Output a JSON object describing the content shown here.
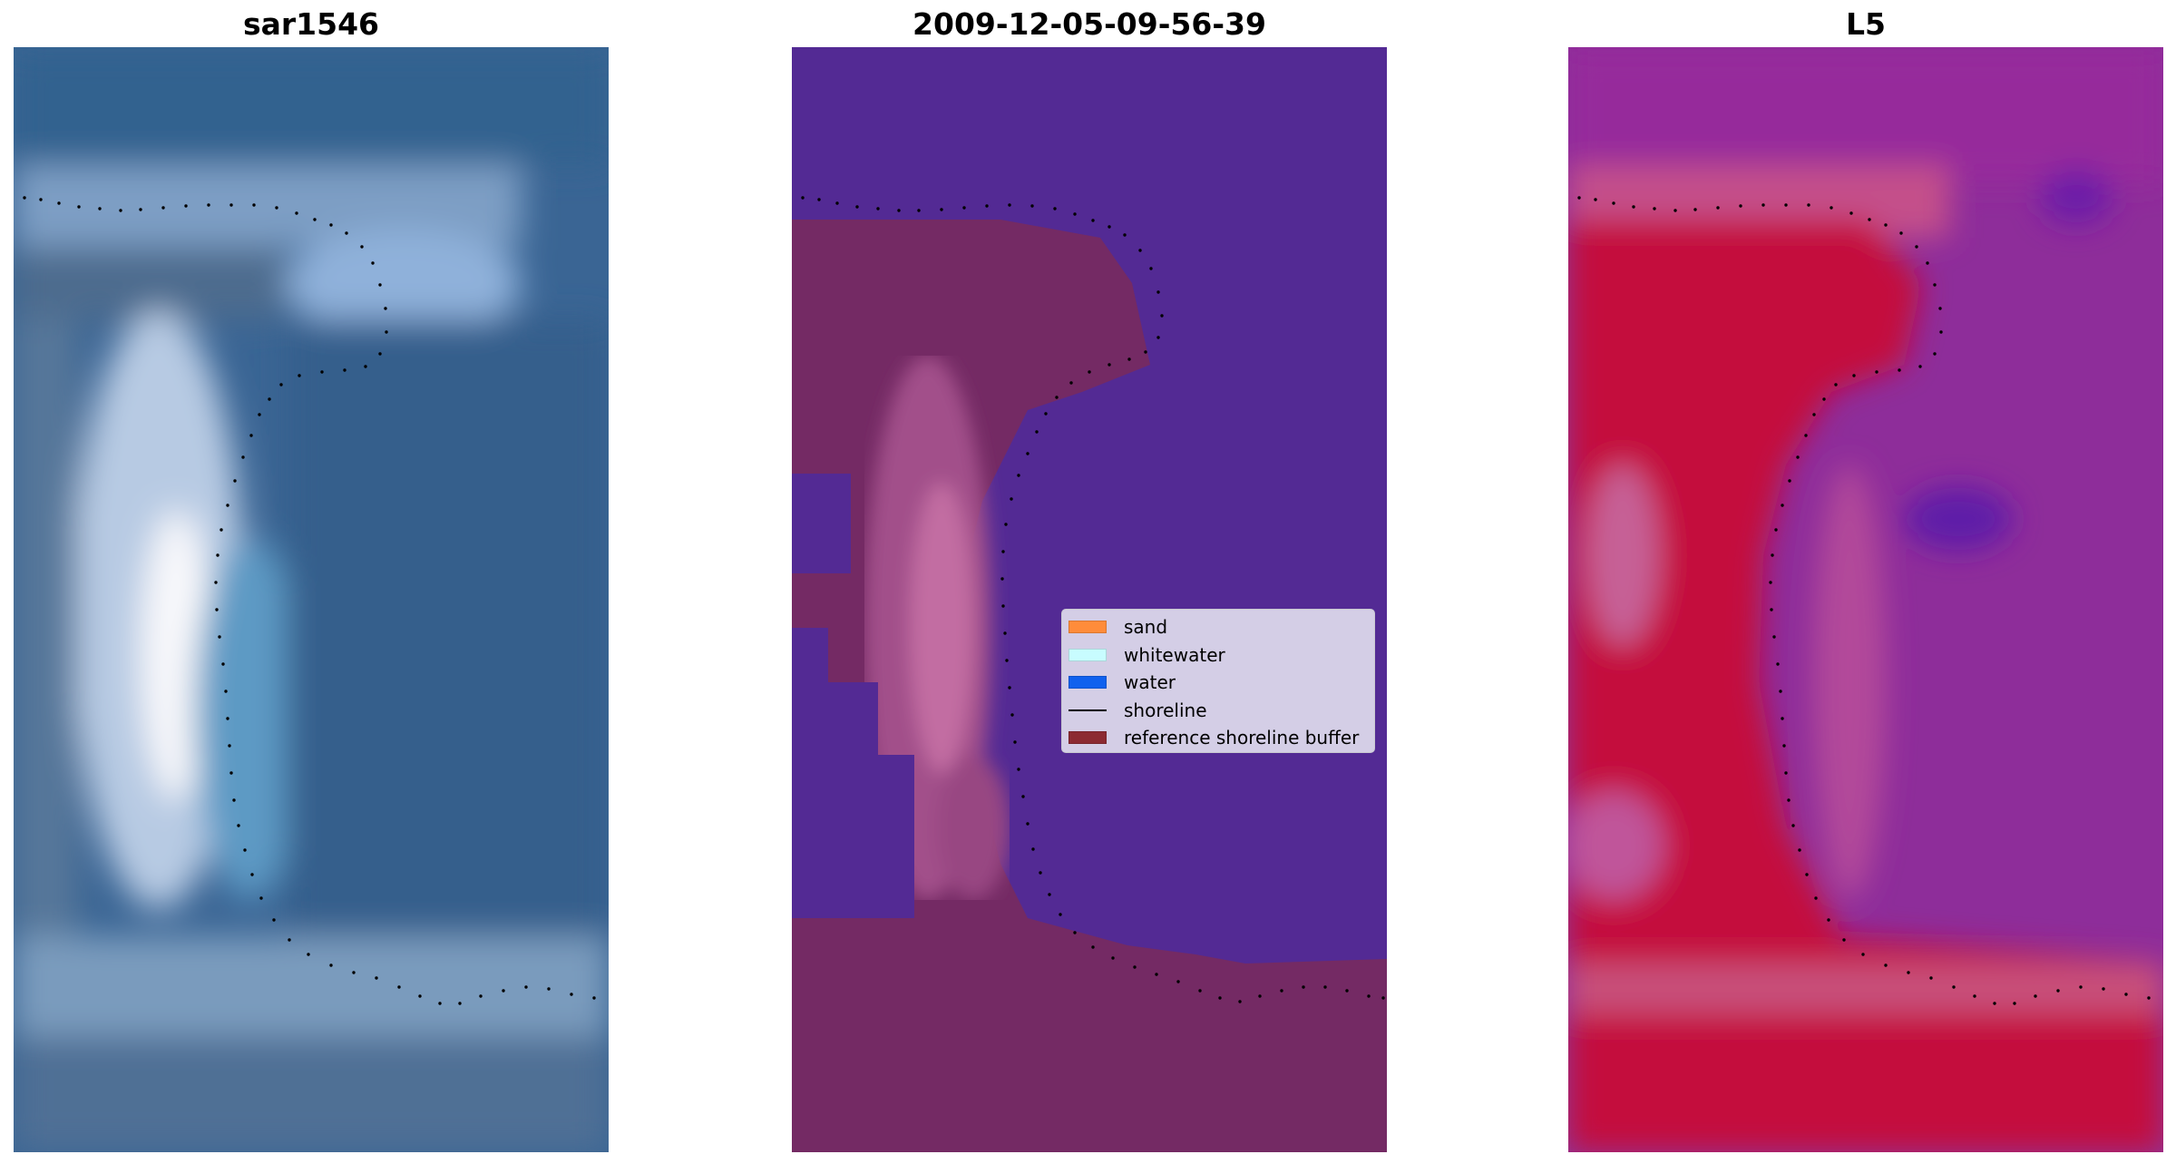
{
  "panels": [
    {
      "title": "sar1546",
      "kind": "rgb"
    },
    {
      "title": "2009-12-05-09-56-39",
      "kind": "classification"
    },
    {
      "title": "L5",
      "kind": "index"
    }
  ],
  "legend": {
    "items": [
      {
        "label": "sand",
        "color": "#ff8c3a",
        "type": "patch"
      },
      {
        "label": "whitewater",
        "color": "#c8fcff",
        "type": "patch"
      },
      {
        "label": "water",
        "color": "#1061ee",
        "type": "patch"
      },
      {
        "label": "shoreline",
        "color": "#000000",
        "type": "line"
      },
      {
        "label": "reference shoreline buffer",
        "color": "#8c2a32",
        "type": "patch"
      }
    ]
  },
  "colors": {
    "rgb_dark": "#2b4d7a",
    "rgb_mid": "#3e6e9e",
    "rgb_bright": "#e8f0fb",
    "class_water_bg": "#532a94",
    "class_buffer": "#742a64",
    "class_pink": "#c06a9c",
    "index_red": "#c4103e",
    "index_purple": "#8e2d9a",
    "index_pink": "#c6609a"
  }
}
